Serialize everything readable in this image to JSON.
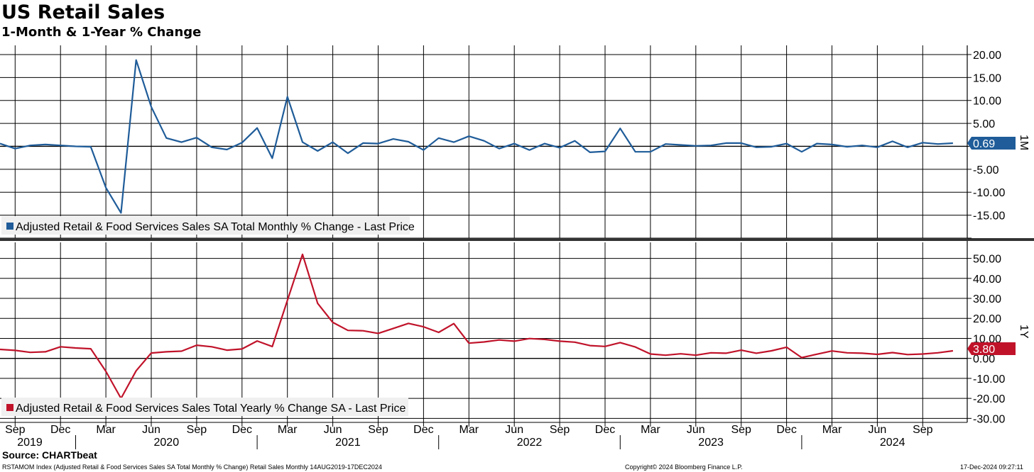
{
  "header": {
    "title": "US Retail Sales",
    "subtitle": "1-Month & 1-Year % Change"
  },
  "footer": {
    "source": "Source: CHARTbeat",
    "description": "RSTAMOM Index (Adjusted Retail & Food Services Sales SA Total Monthly % Change) Retail Sales  Monthly 14AUG2019-17DEC2024",
    "copyright": "Copyright© 2024 Bloomberg Finance L.P.",
    "timestamp": "17-Dec-2024 09:27:11"
  },
  "colors": {
    "monthly": "#1f5c99",
    "yearly": "#c0132a",
    "grid": "#000000"
  },
  "chart_data": [
    {
      "type": "line",
      "axis_label": "1M",
      "series": [
        {
          "name": "Adjusted Retail & Food Services Sales SA Total Monthly % Change - Last Price",
          "last_value": "0.69",
          "x": [
            "2019-08",
            "2019-09",
            "2019-10",
            "2019-11",
            "2019-12",
            "2020-01",
            "2020-02",
            "2020-03",
            "2020-04",
            "2020-05",
            "2020-06",
            "2020-07",
            "2020-08",
            "2020-09",
            "2020-10",
            "2020-11",
            "2020-12",
            "2021-01",
            "2021-02",
            "2021-03",
            "2021-04",
            "2021-05",
            "2021-06",
            "2021-07",
            "2021-08",
            "2021-09",
            "2021-10",
            "2021-11",
            "2021-12",
            "2022-01",
            "2022-02",
            "2022-03",
            "2022-04",
            "2022-05",
            "2022-06",
            "2022-07",
            "2022-08",
            "2022-09",
            "2022-10",
            "2022-11",
            "2022-12",
            "2023-01",
            "2023-02",
            "2023-03",
            "2023-04",
            "2023-05",
            "2023-06",
            "2023-07",
            "2023-08",
            "2023-09",
            "2023-10",
            "2023-11",
            "2023-12",
            "2024-01",
            "2024-02",
            "2024-03",
            "2024-04",
            "2024-05",
            "2024-06",
            "2024-07",
            "2024-08",
            "2024-09",
            "2024-10",
            "2024-11"
          ],
          "values": [
            0.6,
            -0.5,
            0.2,
            0.4,
            0.2,
            0.0,
            -0.1,
            -9.0,
            -14.5,
            18.8,
            8.6,
            1.8,
            0.9,
            1.9,
            -0.2,
            -0.7,
            0.8,
            4.0,
            -2.6,
            10.8,
            0.9,
            -1.0,
            0.9,
            -1.5,
            0.7,
            0.6,
            1.6,
            1.0,
            -0.8,
            1.8,
            0.9,
            2.2,
            1.2,
            -0.5,
            0.6,
            -0.8,
            0.6,
            -0.3,
            1.2,
            -1.3,
            -1.1,
            3.9,
            -1.2,
            -1.2,
            0.5,
            0.3,
            0.1,
            0.2,
            0.7,
            0.7,
            -0.2,
            -0.1,
            0.6,
            -1.2,
            0.6,
            0.4,
            -0.1,
            0.2,
            -0.2,
            1.1,
            -0.2,
            0.8,
            0.5,
            0.69
          ]
        }
      ],
      "y_ticks": [
        "20.00",
        "15.00",
        "10.00",
        "5.00",
        "-5.00",
        "-10.00",
        "-15.00"
      ],
      "ylim": [
        -20,
        22
      ]
    },
    {
      "type": "line",
      "axis_label": "1Y",
      "series": [
        {
          "name": "Adjusted Retail & Food Services Sales Total Yearly % Change SA - Last Price",
          "last_value": "3.80",
          "x": [
            "2019-08",
            "2019-09",
            "2019-10",
            "2019-11",
            "2019-12",
            "2020-01",
            "2020-02",
            "2020-03",
            "2020-04",
            "2020-05",
            "2020-06",
            "2020-07",
            "2020-08",
            "2020-09",
            "2020-10",
            "2020-11",
            "2020-12",
            "2021-01",
            "2021-02",
            "2021-03",
            "2021-04",
            "2021-05",
            "2021-06",
            "2021-07",
            "2021-08",
            "2021-09",
            "2021-10",
            "2021-11",
            "2021-12",
            "2022-01",
            "2022-02",
            "2022-03",
            "2022-04",
            "2022-05",
            "2022-06",
            "2022-07",
            "2022-08",
            "2022-09",
            "2022-10",
            "2022-11",
            "2022-12",
            "2023-01",
            "2023-02",
            "2023-03",
            "2023-04",
            "2023-05",
            "2023-06",
            "2023-07",
            "2023-08",
            "2023-09",
            "2023-10",
            "2023-11",
            "2023-12",
            "2024-01",
            "2024-02",
            "2024-03",
            "2024-04",
            "2024-05",
            "2024-06",
            "2024-07",
            "2024-08",
            "2024-09",
            "2024-10",
            "2024-11"
          ],
          "values": [
            4.5,
            4.0,
            3.0,
            3.3,
            5.8,
            5.2,
            4.8,
            -6.5,
            -20.0,
            -6.2,
            2.7,
            3.3,
            3.6,
            6.6,
            5.8,
            4.1,
            4.7,
            8.7,
            5.9,
            29.0,
            52.0,
            27.5,
            18.0,
            14.0,
            13.8,
            12.5,
            15.0,
            17.5,
            15.8,
            13.0,
            17.4,
            7.6,
            8.2,
            9.2,
            8.6,
            9.9,
            9.5,
            8.6,
            8.1,
            6.4,
            6.0,
            7.9,
            5.7,
            2.2,
            1.6,
            2.3,
            1.6,
            2.8,
            2.6,
            4.1,
            2.6,
            3.8,
            5.6,
            0.4,
            2.1,
            3.7,
            2.8,
            2.6,
            2.0,
            2.9,
            1.9,
            2.2,
            2.8,
            3.8
          ]
        }
      ],
      "y_ticks": [
        "50.00",
        "40.00",
        "30.00",
        "20.00",
        "10.00",
        "0.00",
        "-10.00",
        "-20.00",
        "-30.00"
      ],
      "ylim": [
        -32,
        58
      ]
    }
  ],
  "x_axis": {
    "months": [
      "Sep",
      "Dec",
      "Mar",
      "Jun",
      "Sep",
      "Dec",
      "Mar",
      "Jun",
      "Sep",
      "Dec",
      "Mar",
      "Jun",
      "Sep",
      "Dec",
      "Mar",
      "Jun",
      "Sep",
      "Dec",
      "Mar",
      "Jun",
      "Sep"
    ],
    "years": [
      "2019",
      "2020",
      "2021",
      "2022",
      "2023",
      "2024"
    ]
  }
}
